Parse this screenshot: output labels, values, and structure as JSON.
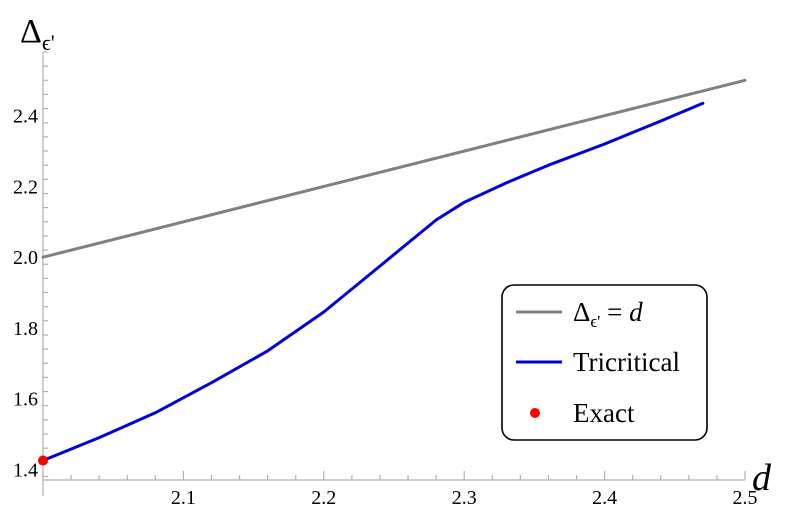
{
  "chart_data": {
    "type": "line",
    "title": "",
    "xlabel": "d",
    "ylabel_base": "Δ",
    "ylabel_sub": "ϵ'",
    "xlim": [
      2.0,
      2.5
    ],
    "ylim": [
      1.37,
      2.58
    ],
    "x_ticks": [
      2.1,
      2.2,
      2.3,
      2.4,
      2.5
    ],
    "x_tick_labels": [
      "2.1",
      "2.2",
      "2.3",
      "2.4",
      "2.5"
    ],
    "y_ticks": [
      1.4,
      1.6,
      1.8,
      2.0,
      2.2,
      2.4
    ],
    "y_tick_labels": [
      "1.4",
      "1.6",
      "1.8",
      "2.0",
      "2.2",
      "2.4"
    ],
    "grid": false,
    "legend_position": "bottom-right",
    "series": [
      {
        "name": "Δϵ' = d",
        "legend_base": "Δ",
        "legend_sub": "ϵ'",
        "legend_rest": " = ",
        "legend_var": "d",
        "color": "#808080",
        "kind": "line",
        "x": [
          2.0,
          2.5
        ],
        "y": [
          2.0,
          2.5
        ]
      },
      {
        "name": "Tricritical",
        "color": "#0000dd",
        "kind": "line",
        "x": [
          2.0,
          2.04,
          2.08,
          2.12,
          2.16,
          2.2,
          2.24,
          2.26,
          2.28,
          2.3,
          2.33,
          2.36,
          2.4,
          2.44,
          2.47
        ],
        "y": [
          1.425,
          1.49,
          1.56,
          1.645,
          1.735,
          1.845,
          1.975,
          2.04,
          2.105,
          2.155,
          2.21,
          2.26,
          2.32,
          2.385,
          2.435
        ]
      },
      {
        "name": "Exact",
        "color": "#ff0000",
        "kind": "point",
        "x": [
          2.0
        ],
        "y": [
          1.425
        ]
      }
    ]
  }
}
